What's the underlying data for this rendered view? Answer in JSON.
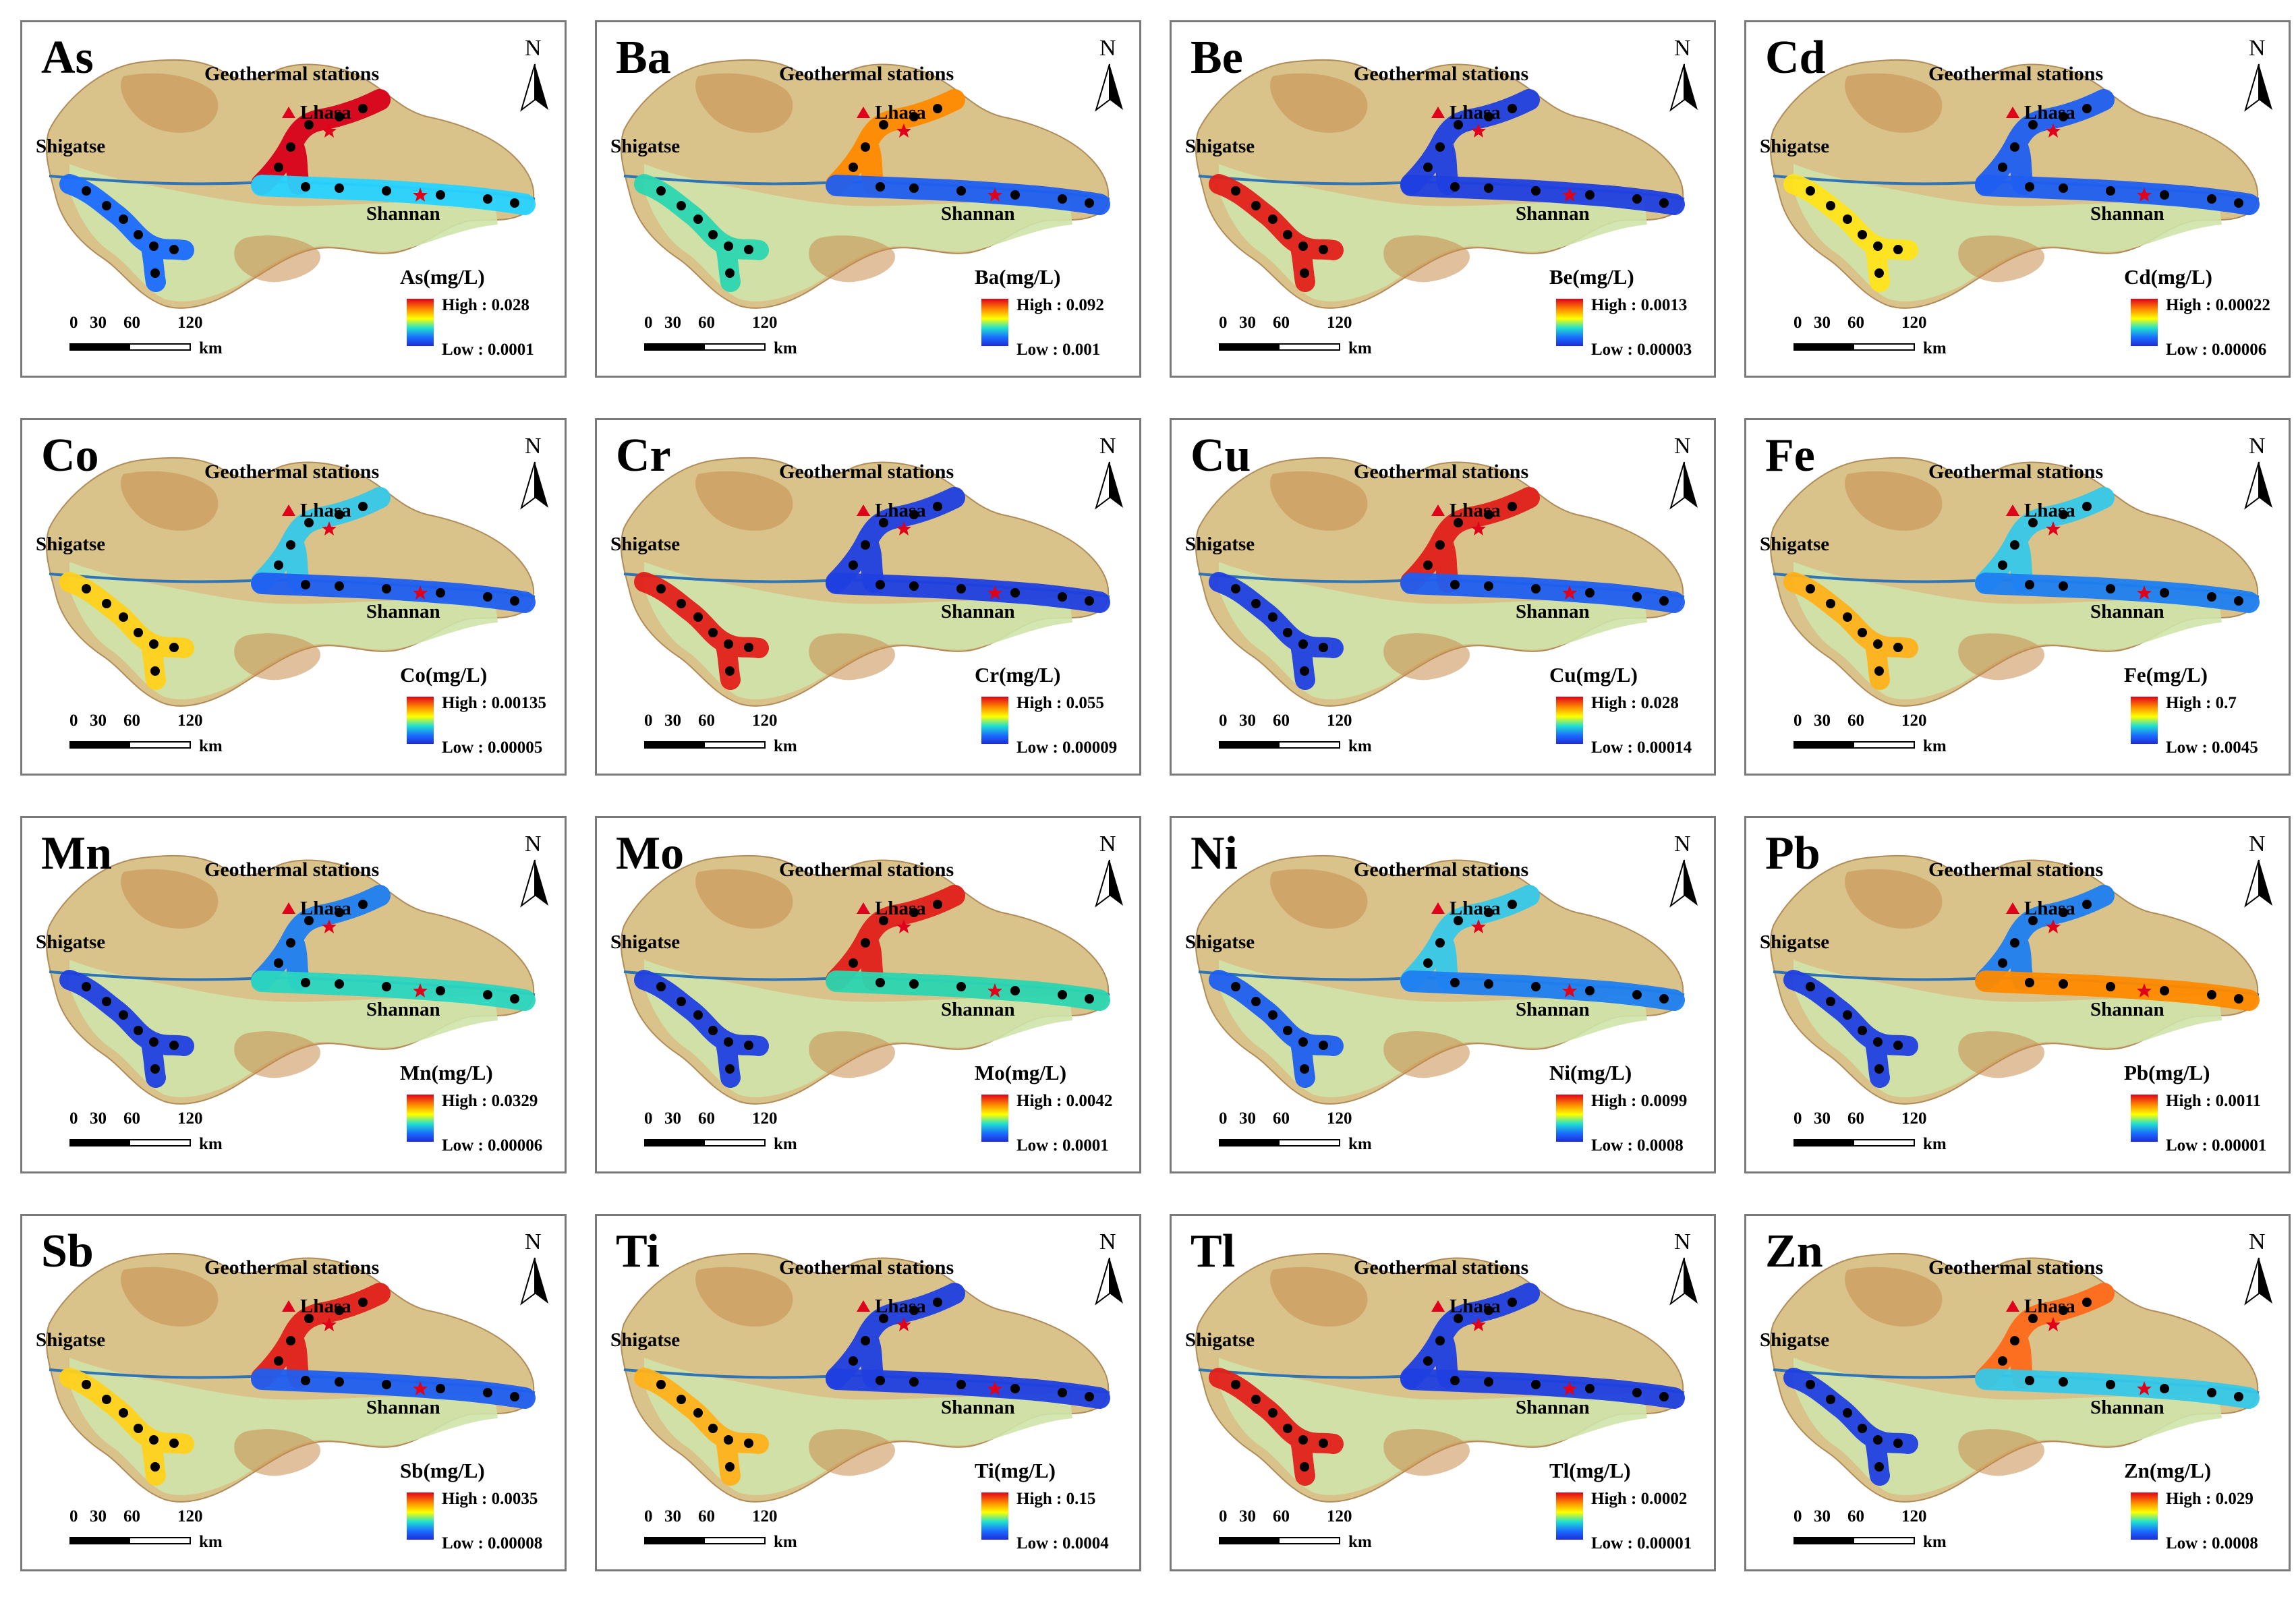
{
  "figure": {
    "panel_title": "Geothermal stations",
    "north_label": "N",
    "cities": {
      "shigatse": "Shigatse",
      "lhasa": "Lhasa",
      "shannan": "Shannan"
    },
    "scale": {
      "ticks": [
        "0",
        "30",
        "60",
        "120"
      ],
      "unit": "km"
    }
  },
  "panels": [
    {
      "element": "As",
      "legend_title": "As(mg/L)",
      "high": "High : 0.028",
      "low": "Low : 0.0001",
      "colors": {
        "west": "#1a6cff",
        "north": "#d8001a",
        "east": "#27d3ff"
      }
    },
    {
      "element": "Ba",
      "legend_title": "Ba(mg/L)",
      "high": "High : 0.092",
      "low": "Low : 0.001",
      "colors": {
        "west": "#2bd6b0",
        "north": "#ff8a00",
        "east": "#1f5ef0"
      }
    },
    {
      "element": "Be",
      "legend_title": "Be(mg/L)",
      "high": "High : 0.0013",
      "low": "Low : 0.00003",
      "colors": {
        "west": "#e0201a",
        "north": "#1f3fe0",
        "east": "#1f3fe0"
      }
    },
    {
      "element": "Cd",
      "legend_title": "Cd(mg/L)",
      "high": "High : 0.00022",
      "low": "Low : 0.00006",
      "colors": {
        "west": "#ffe31a",
        "north": "#1f5ef0",
        "east": "#1f5ef0"
      }
    },
    {
      "element": "Co",
      "legend_title": "Co(mg/L)",
      "high": "High : 0.00135",
      "low": "Low : 0.00005",
      "colors": {
        "west": "#ffd11a",
        "north": "#36c8e8",
        "east": "#1f5ef0"
      }
    },
    {
      "element": "Cr",
      "legend_title": "Cr(mg/L)",
      "high": "High : 0.055",
      "low": "Low : 0.00009",
      "colors": {
        "west": "#e0201a",
        "north": "#1f3fe0",
        "east": "#1f3fe0"
      }
    },
    {
      "element": "Cu",
      "legend_title": "Cu(mg/L)",
      "high": "High : 0.028",
      "low": "Low : 0.00014",
      "colors": {
        "west": "#1f3fe0",
        "north": "#e0201a",
        "east": "#1f5ef0"
      }
    },
    {
      "element": "Fe",
      "legend_title": "Fe(mg/L)",
      "high": "High : 0.7",
      "low": "Low : 0.0045",
      "colors": {
        "west": "#ffb11a",
        "north": "#36c8e8",
        "east": "#1f7ef0"
      }
    },
    {
      "element": "Mn",
      "legend_title": "Mn(mg/L)",
      "high": "High : 0.0329",
      "low": "Low : 0.00006",
      "colors": {
        "west": "#1f3fe0",
        "north": "#1f7ef0",
        "east": "#2bd6c0"
      }
    },
    {
      "element": "Mo",
      "legend_title": "Mo(mg/L)",
      "high": "High : 0.0042",
      "low": "Low : 0.0001",
      "colors": {
        "west": "#1f3fe0",
        "north": "#e0201a",
        "east": "#2bd6b0"
      }
    },
    {
      "element": "Ni",
      "legend_title": "Ni(mg/L)",
      "high": "High : 0.0099",
      "low": "Low : 0.0008",
      "colors": {
        "west": "#1f5ef0",
        "north": "#36c8e8",
        "east": "#1f7ef0"
      }
    },
    {
      "element": "Pb",
      "legend_title": "Pb(mg/L)",
      "high": "High : 0.0011",
      "low": "Low : 0.00001",
      "colors": {
        "west": "#1f3fe0",
        "north": "#1f7ef0",
        "east": "#ff8a00"
      }
    },
    {
      "element": "Sb",
      "legend_title": "Sb(mg/L)",
      "high": "High : 0.0035",
      "low": "Low : 0.00008",
      "colors": {
        "west": "#ffd11a",
        "north": "#e0201a",
        "east": "#1f5ef0"
      }
    },
    {
      "element": "Ti",
      "legend_title": "Ti(mg/L)",
      "high": "High : 0.15",
      "low": "Low : 0.0004",
      "colors": {
        "west": "#ffb11a",
        "north": "#1f3fe0",
        "east": "#1f3fe0"
      }
    },
    {
      "element": "Tl",
      "legend_title": "Tl(mg/L)",
      "high": "High : 0.0002",
      "low": "Low : 0.00001",
      "colors": {
        "west": "#e0201a",
        "north": "#1f3fe0",
        "east": "#1f3fe0"
      }
    },
    {
      "element": "Zn",
      "legend_title": "Zn(mg/L)",
      "high": "High : 0.029",
      "low": "Low : 0.0008",
      "colors": {
        "west": "#1f3fe0",
        "north": "#ff6a1a",
        "east": "#36c8e8"
      }
    }
  ]
}
